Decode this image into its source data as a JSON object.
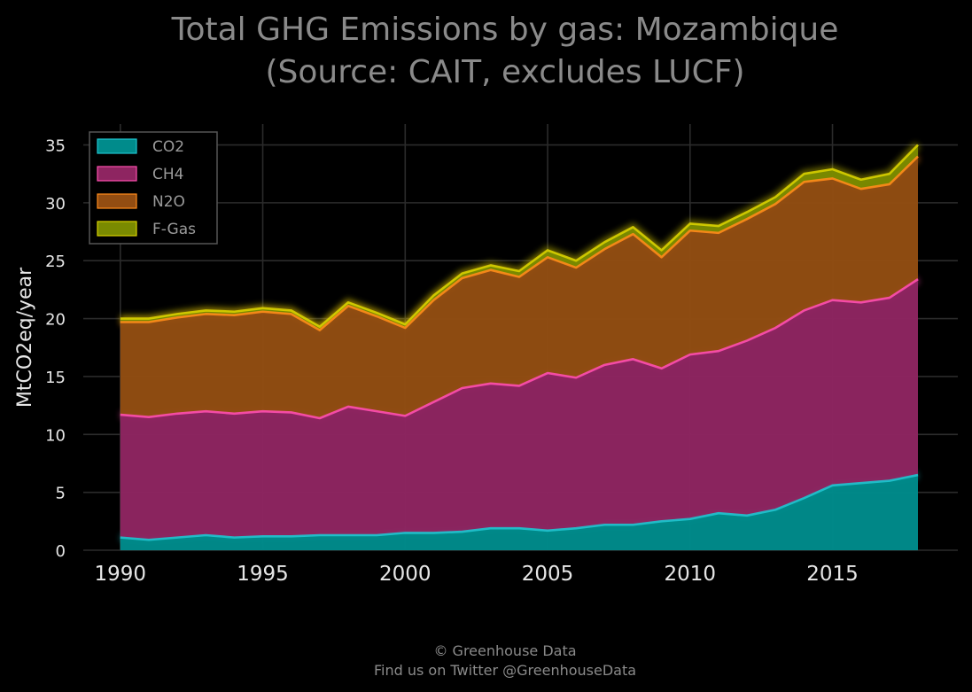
{
  "chart_data": {
    "type": "area",
    "stacked": true,
    "title_lines": [
      "Total GHG Emissions by gas: Mozambique",
      "(Source: CAIT, excludes LUCF)"
    ],
    "xlabel": "",
    "ylabel": "MtCO2eq/year",
    "xlim": [
      1988.7,
      2019.4
    ],
    "ylim": [
      0,
      36.8
    ],
    "x_ticks": [
      1990,
      1995,
      2000,
      2005,
      2010,
      2015
    ],
    "y_ticks": [
      0,
      5,
      10,
      15,
      20,
      25,
      30,
      35
    ],
    "grid": true,
    "legend_position": "top-left",
    "background": "#000000",
    "x": [
      1990,
      1991,
      1992,
      1993,
      1994,
      1995,
      1996,
      1997,
      1998,
      1999,
      2000,
      2001,
      2002,
      2003,
      2004,
      2005,
      2006,
      2007,
      2008,
      2009,
      2010,
      2011,
      2012,
      2013,
      2014,
      2015,
      2016,
      2017,
      2018
    ],
    "series": [
      {
        "name": "CO2",
        "color": "#008b8b",
        "line_color": "#1fc5d0",
        "values": [
          1.1,
          0.9,
          1.1,
          1.3,
          1.1,
          1.2,
          1.2,
          1.3,
          1.3,
          1.3,
          1.5,
          1.5,
          1.6,
          1.9,
          1.9,
          1.7,
          1.9,
          2.2,
          2.2,
          2.5,
          2.7,
          3.2,
          3.0,
          3.5,
          4.5,
          5.6,
          5.8,
          6.0,
          6.5
        ]
      },
      {
        "name": "CH4",
        "color": "#8e2561",
        "line_color": "#ff4fb0",
        "values": [
          10.6,
          10.6,
          10.7,
          10.7,
          10.7,
          10.8,
          10.7,
          10.1,
          11.1,
          10.7,
          10.1,
          11.3,
          12.4,
          12.5,
          12.3,
          13.6,
          13.0,
          13.8,
          14.3,
          13.2,
          14.2,
          14.0,
          15.1,
          15.7,
          16.2,
          16.0,
          15.6,
          15.8,
          16.9
        ]
      },
      {
        "name": "N2O",
        "color": "#924d12",
        "line_color": "#ff8c1a",
        "values": [
          8.0,
          8.2,
          8.3,
          8.4,
          8.5,
          8.6,
          8.5,
          7.6,
          8.7,
          8.2,
          7.6,
          8.8,
          9.5,
          9.8,
          9.4,
          10.0,
          9.5,
          10.0,
          10.8,
          9.6,
          10.7,
          10.2,
          10.5,
          10.7,
          11.1,
          10.5,
          9.8,
          9.8,
          10.6
        ]
      },
      {
        "name": "F-Gas",
        "color": "#7a8a00",
        "line_color": "#d8d000",
        "values": [
          0.3,
          0.3,
          0.3,
          0.3,
          0.3,
          0.3,
          0.3,
          0.3,
          0.3,
          0.3,
          0.3,
          0.4,
          0.4,
          0.4,
          0.5,
          0.6,
          0.6,
          0.6,
          0.6,
          0.6,
          0.6,
          0.6,
          0.6,
          0.6,
          0.7,
          0.8,
          0.8,
          0.9,
          1.0
        ]
      }
    ],
    "footer_lines": [
      "© Greenhouse Data",
      "Find us on Twitter @GreenhouseData"
    ]
  }
}
